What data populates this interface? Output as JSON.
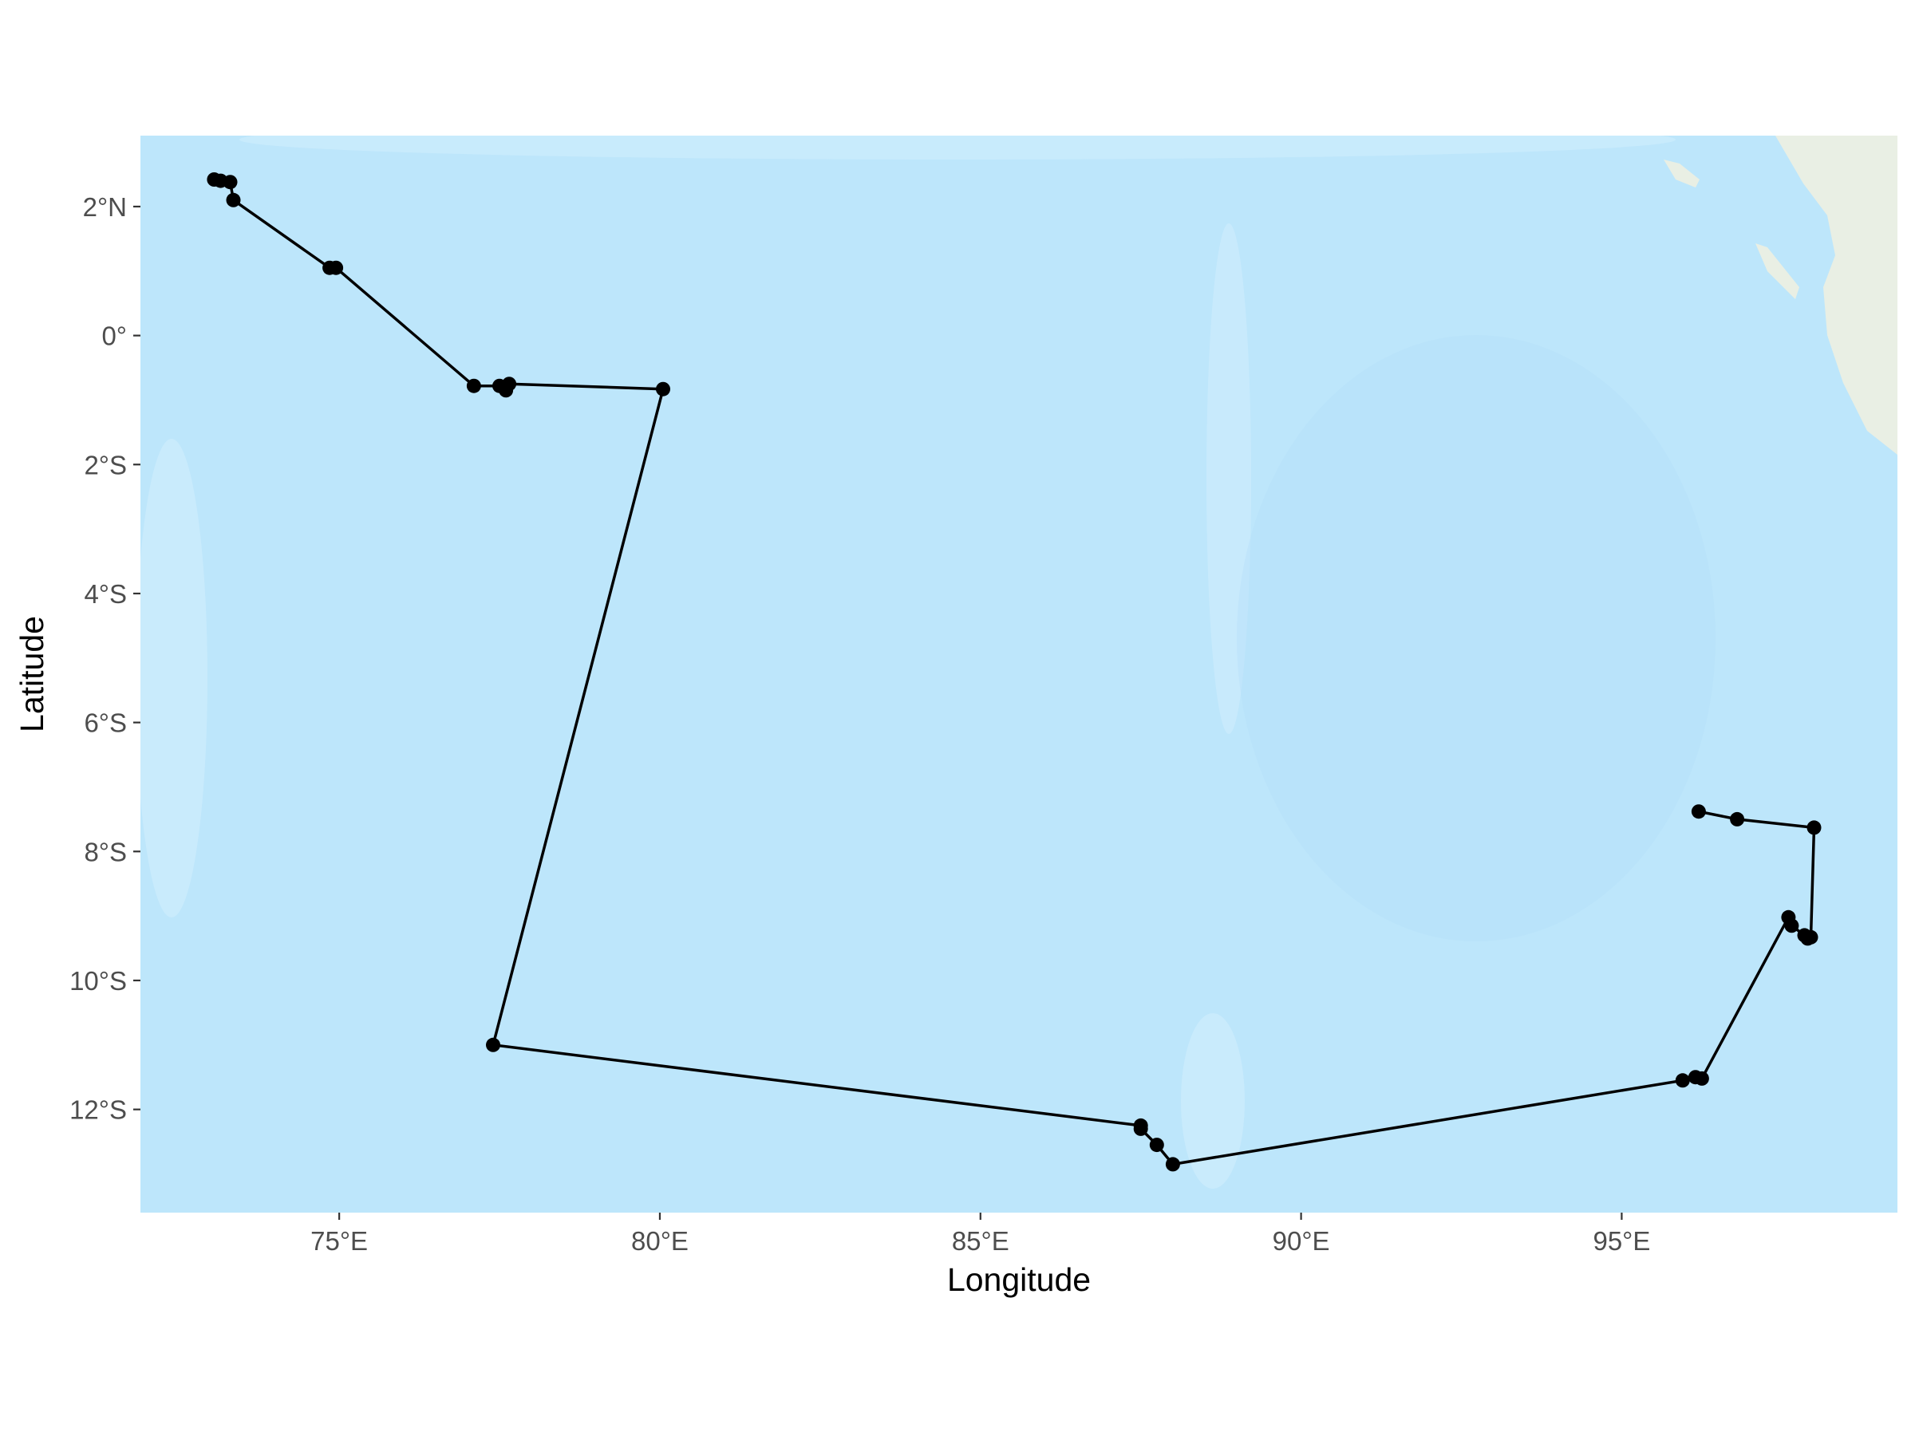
{
  "colors": {
    "ocean": "#bde6fb",
    "ocean_light": "#d4effd",
    "ocean_deep": "#b2defa",
    "land": "#e9efe4",
    "track": "#000000",
    "tick": "#333333"
  },
  "chart_data": {
    "type": "map-track",
    "title": "",
    "xlabel": "Longitude",
    "ylabel": "Latitude",
    "xlim": [
      71.9,
      99.3
    ],
    "ylim": [
      -13.6,
      3.1
    ],
    "xticks": [
      {
        "value": 75,
        "label": "75°E"
      },
      {
        "value": 80,
        "label": "80°E"
      },
      {
        "value": 85,
        "label": "85°E"
      },
      {
        "value": 90,
        "label": "90°E"
      },
      {
        "value": 95,
        "label": "95°E"
      }
    ],
    "yticks": [
      {
        "value": 2,
        "label": "2°N"
      },
      {
        "value": 0,
        "label": "0°"
      },
      {
        "value": -2,
        "label": "2°S"
      },
      {
        "value": -4,
        "label": "4°S"
      },
      {
        "value": -6,
        "label": "6°S"
      },
      {
        "value": -8,
        "label": "8°S"
      },
      {
        "value": -10,
        "label": "10°S"
      },
      {
        "value": -12,
        "label": "12°S"
      }
    ],
    "basemap": "ocean-topographic",
    "points": [
      {
        "lon": 73.05,
        "lat": 2.42
      },
      {
        "lon": 73.15,
        "lat": 2.4
      },
      {
        "lon": 73.3,
        "lat": 2.38
      },
      {
        "lon": 73.35,
        "lat": 2.1
      },
      {
        "lon": 74.85,
        "lat": 1.05
      },
      {
        "lon": 74.95,
        "lat": 1.05
      },
      {
        "lon": 77.1,
        "lat": -0.78
      },
      {
        "lon": 77.5,
        "lat": -0.78
      },
      {
        "lon": 77.6,
        "lat": -0.85
      },
      {
        "lon": 77.65,
        "lat": -0.75
      },
      {
        "lon": 80.05,
        "lat": -0.83
      },
      {
        "lon": 77.4,
        "lat": -11.0
      },
      {
        "lon": 87.5,
        "lat": -12.25
      },
      {
        "lon": 87.5,
        "lat": -12.3
      },
      {
        "lon": 87.75,
        "lat": -12.55
      },
      {
        "lon": 88.0,
        "lat": -12.85
      },
      {
        "lon": 95.95,
        "lat": -11.55
      },
      {
        "lon": 96.15,
        "lat": -11.5
      },
      {
        "lon": 96.25,
        "lat": -11.52
      },
      {
        "lon": 97.6,
        "lat": -9.02
      },
      {
        "lon": 97.65,
        "lat": -9.15
      },
      {
        "lon": 97.85,
        "lat": -9.3
      },
      {
        "lon": 97.9,
        "lat": -9.35
      },
      {
        "lon": 97.95,
        "lat": -9.33
      },
      {
        "lon": 98.0,
        "lat": -7.63
      },
      {
        "lon": 96.8,
        "lat": -7.5
      },
      {
        "lon": 96.2,
        "lat": -7.38
      }
    ]
  }
}
